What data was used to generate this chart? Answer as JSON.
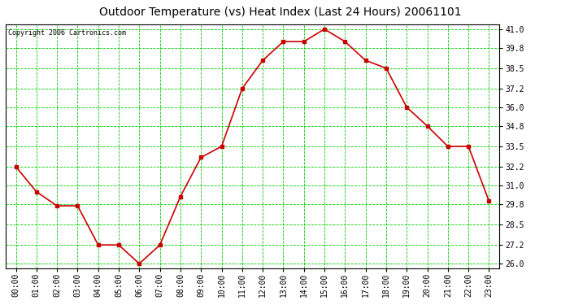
{
  "title": "Outdoor Temperature (vs) Heat Index (Last 24 Hours) 20061101",
  "copyright": "Copyright 2006 Cartronics.com",
  "x_labels": [
    "00:00",
    "01:00",
    "02:00",
    "03:00",
    "04:00",
    "05:00",
    "06:00",
    "07:00",
    "08:00",
    "09:00",
    "10:00",
    "11:00",
    "12:00",
    "13:00",
    "14:00",
    "15:00",
    "16:00",
    "17:00",
    "18:00",
    "19:00",
    "20:00",
    "21:00",
    "22:00",
    "23:00"
  ],
  "y_values": [
    32.2,
    30.6,
    29.7,
    29.7,
    27.2,
    27.2,
    26.0,
    27.2,
    30.3,
    32.8,
    33.5,
    37.2,
    39.0,
    40.2,
    40.2,
    41.0,
    40.2,
    39.0,
    38.5,
    36.0,
    34.8,
    33.5,
    33.5,
    30.0
  ],
  "line_color": "#cc0000",
  "marker_color": "#cc0000",
  "bg_color": "#ffffff",
  "plot_bg_color": "#ffffff",
  "grid_color": "#00cc00",
  "title_color": "#000000",
  "copyright_color": "#000000",
  "yticks": [
    26.0,
    27.2,
    28.5,
    29.8,
    31.0,
    32.2,
    33.5,
    34.8,
    36.0,
    37.2,
    38.5,
    39.8,
    41.0
  ],
  "ylim": [
    25.7,
    41.3
  ],
  "title_fontsize": 10,
  "copyright_fontsize": 6,
  "tick_fontsize": 7,
  "border_color": "#000000"
}
